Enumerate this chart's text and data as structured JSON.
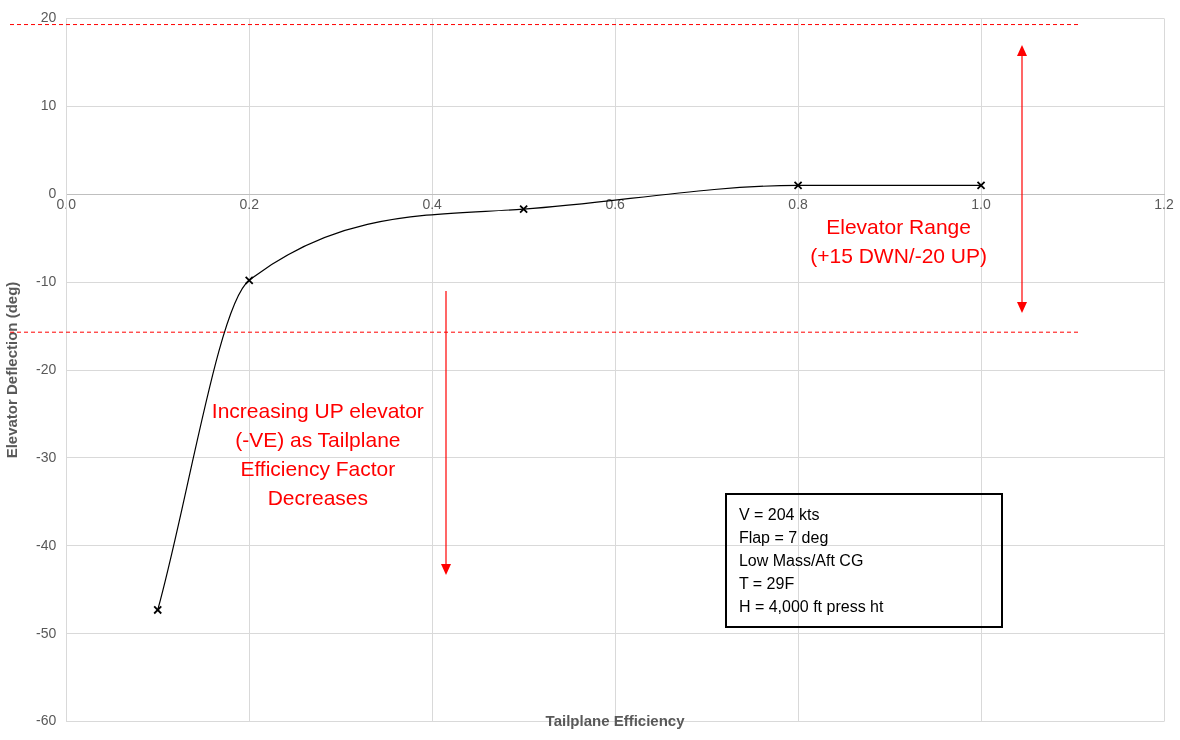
{
  "chart_data": {
    "type": "line",
    "xlabel": "Tailplane Efficiency",
    "ylabel": "Elevator Deflection (deg)",
    "x": [
      0.1,
      0.2,
      0.5,
      0.8,
      1.0
    ],
    "series": [
      {
        "color": "#000000",
        "values": [
          -47.3,
          -9.8,
          -1.7,
          1.0,
          1.0
        ]
      }
    ],
    "xlim": [
      0,
      1.2
    ],
    "xticks": [
      {
        "value": 0,
        "label": "0.0"
      },
      0.2,
      0.4,
      0.6,
      0.8,
      {
        "value": 1,
        "label": "1.0"
      },
      1.2
    ],
    "ylim": [
      -60,
      20
    ],
    "yticks": [
      -60,
      -50,
      -40,
      -30,
      -20,
      -10,
      0,
      10,
      20
    ],
    "ref_lines": [
      {
        "axis": "y",
        "value": 19.3,
        "color": "#ff0000",
        "line_style": "dashed"
      },
      {
        "axis": "y",
        "value": -15.7,
        "color": "#ff0000",
        "line_style": "dashed"
      }
    ],
    "annotations": [
      "Elevator Range\n(+15 DWN/-20 UP)",
      "Increasing UP elevator\n(-VE) as Tailplane\nEfficiency Factor\nDecreases",
      "V = 204 kts\nFlap = 7 deg\nLow Mass/Aft CG\nT = 29F\nH = 4,000 ft press ht"
    ],
    "grid": true,
    "legend": false,
    "marker": "cross",
    "line_style": "solid"
  }
}
